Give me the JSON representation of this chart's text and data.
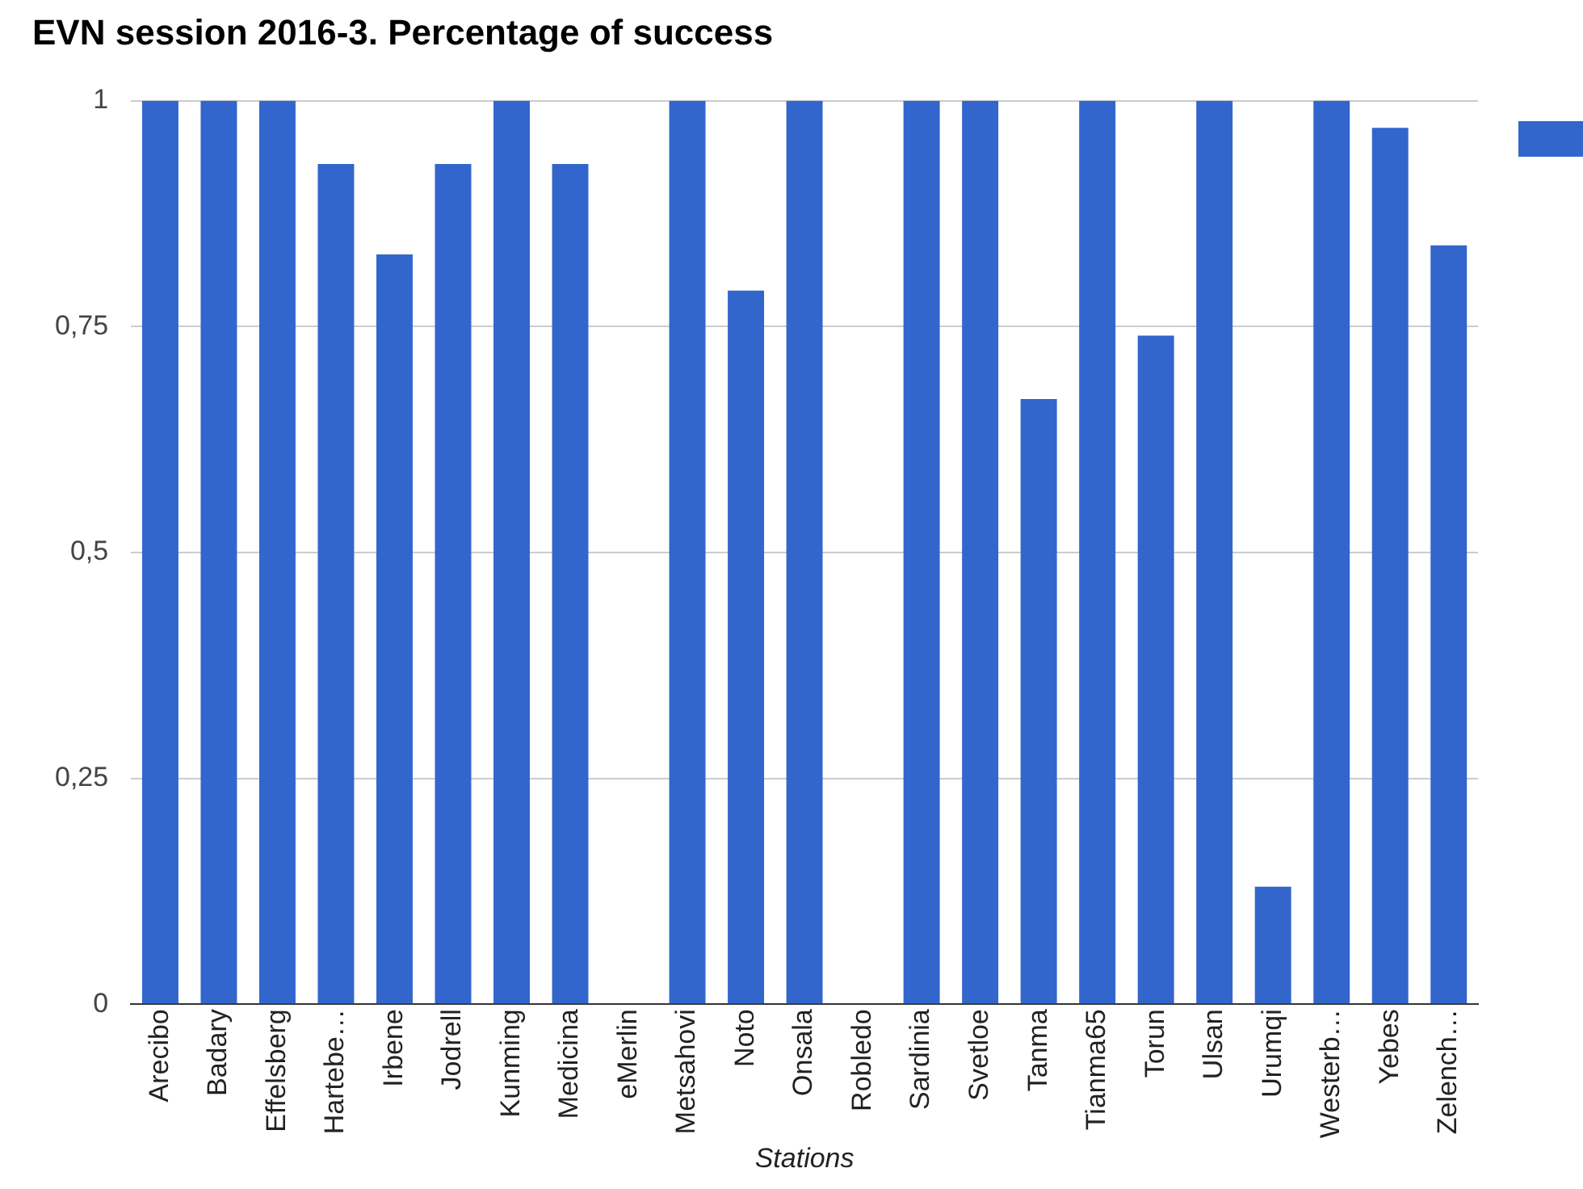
{
  "chart_data": {
    "type": "bar",
    "title": "EVN session 2016-3. Percentage of success",
    "xlabel": "Stations",
    "categories": [
      "Arecibo",
      "Badary",
      "Effelsberg",
      "Hartebe…",
      "Irbene",
      "Jodrell",
      "Kunming",
      "Medicina",
      "eMerlin",
      "Metsahovi",
      "Noto",
      "Onsala",
      "Robledo",
      "Sardinia",
      "Svetloe",
      "Tanma",
      "Tianma65",
      "Torun",
      "Ulsan",
      "Urumqi",
      "Westerb…",
      "Yebes",
      "Zelench…"
    ],
    "series": [
      {
        "color": "#3366cc",
        "values": [
          1,
          1,
          1,
          0.93,
          0.83,
          0.93,
          1,
          0.93,
          0,
          1,
          0.79,
          1,
          0,
          1,
          1,
          0.67,
          1,
          0.74,
          1,
          0.13,
          1,
          0.97,
          0.84
        ]
      }
    ],
    "ylim": [
      0,
      1
    ],
    "yticks": [
      0,
      {
        "value": 0.25,
        "label": "0,25"
      },
      {
        "value": 0.5,
        "label": "0,5"
      },
      {
        "value": 0.75,
        "label": "0,75"
      },
      1
    ],
    "grid": "y"
  }
}
